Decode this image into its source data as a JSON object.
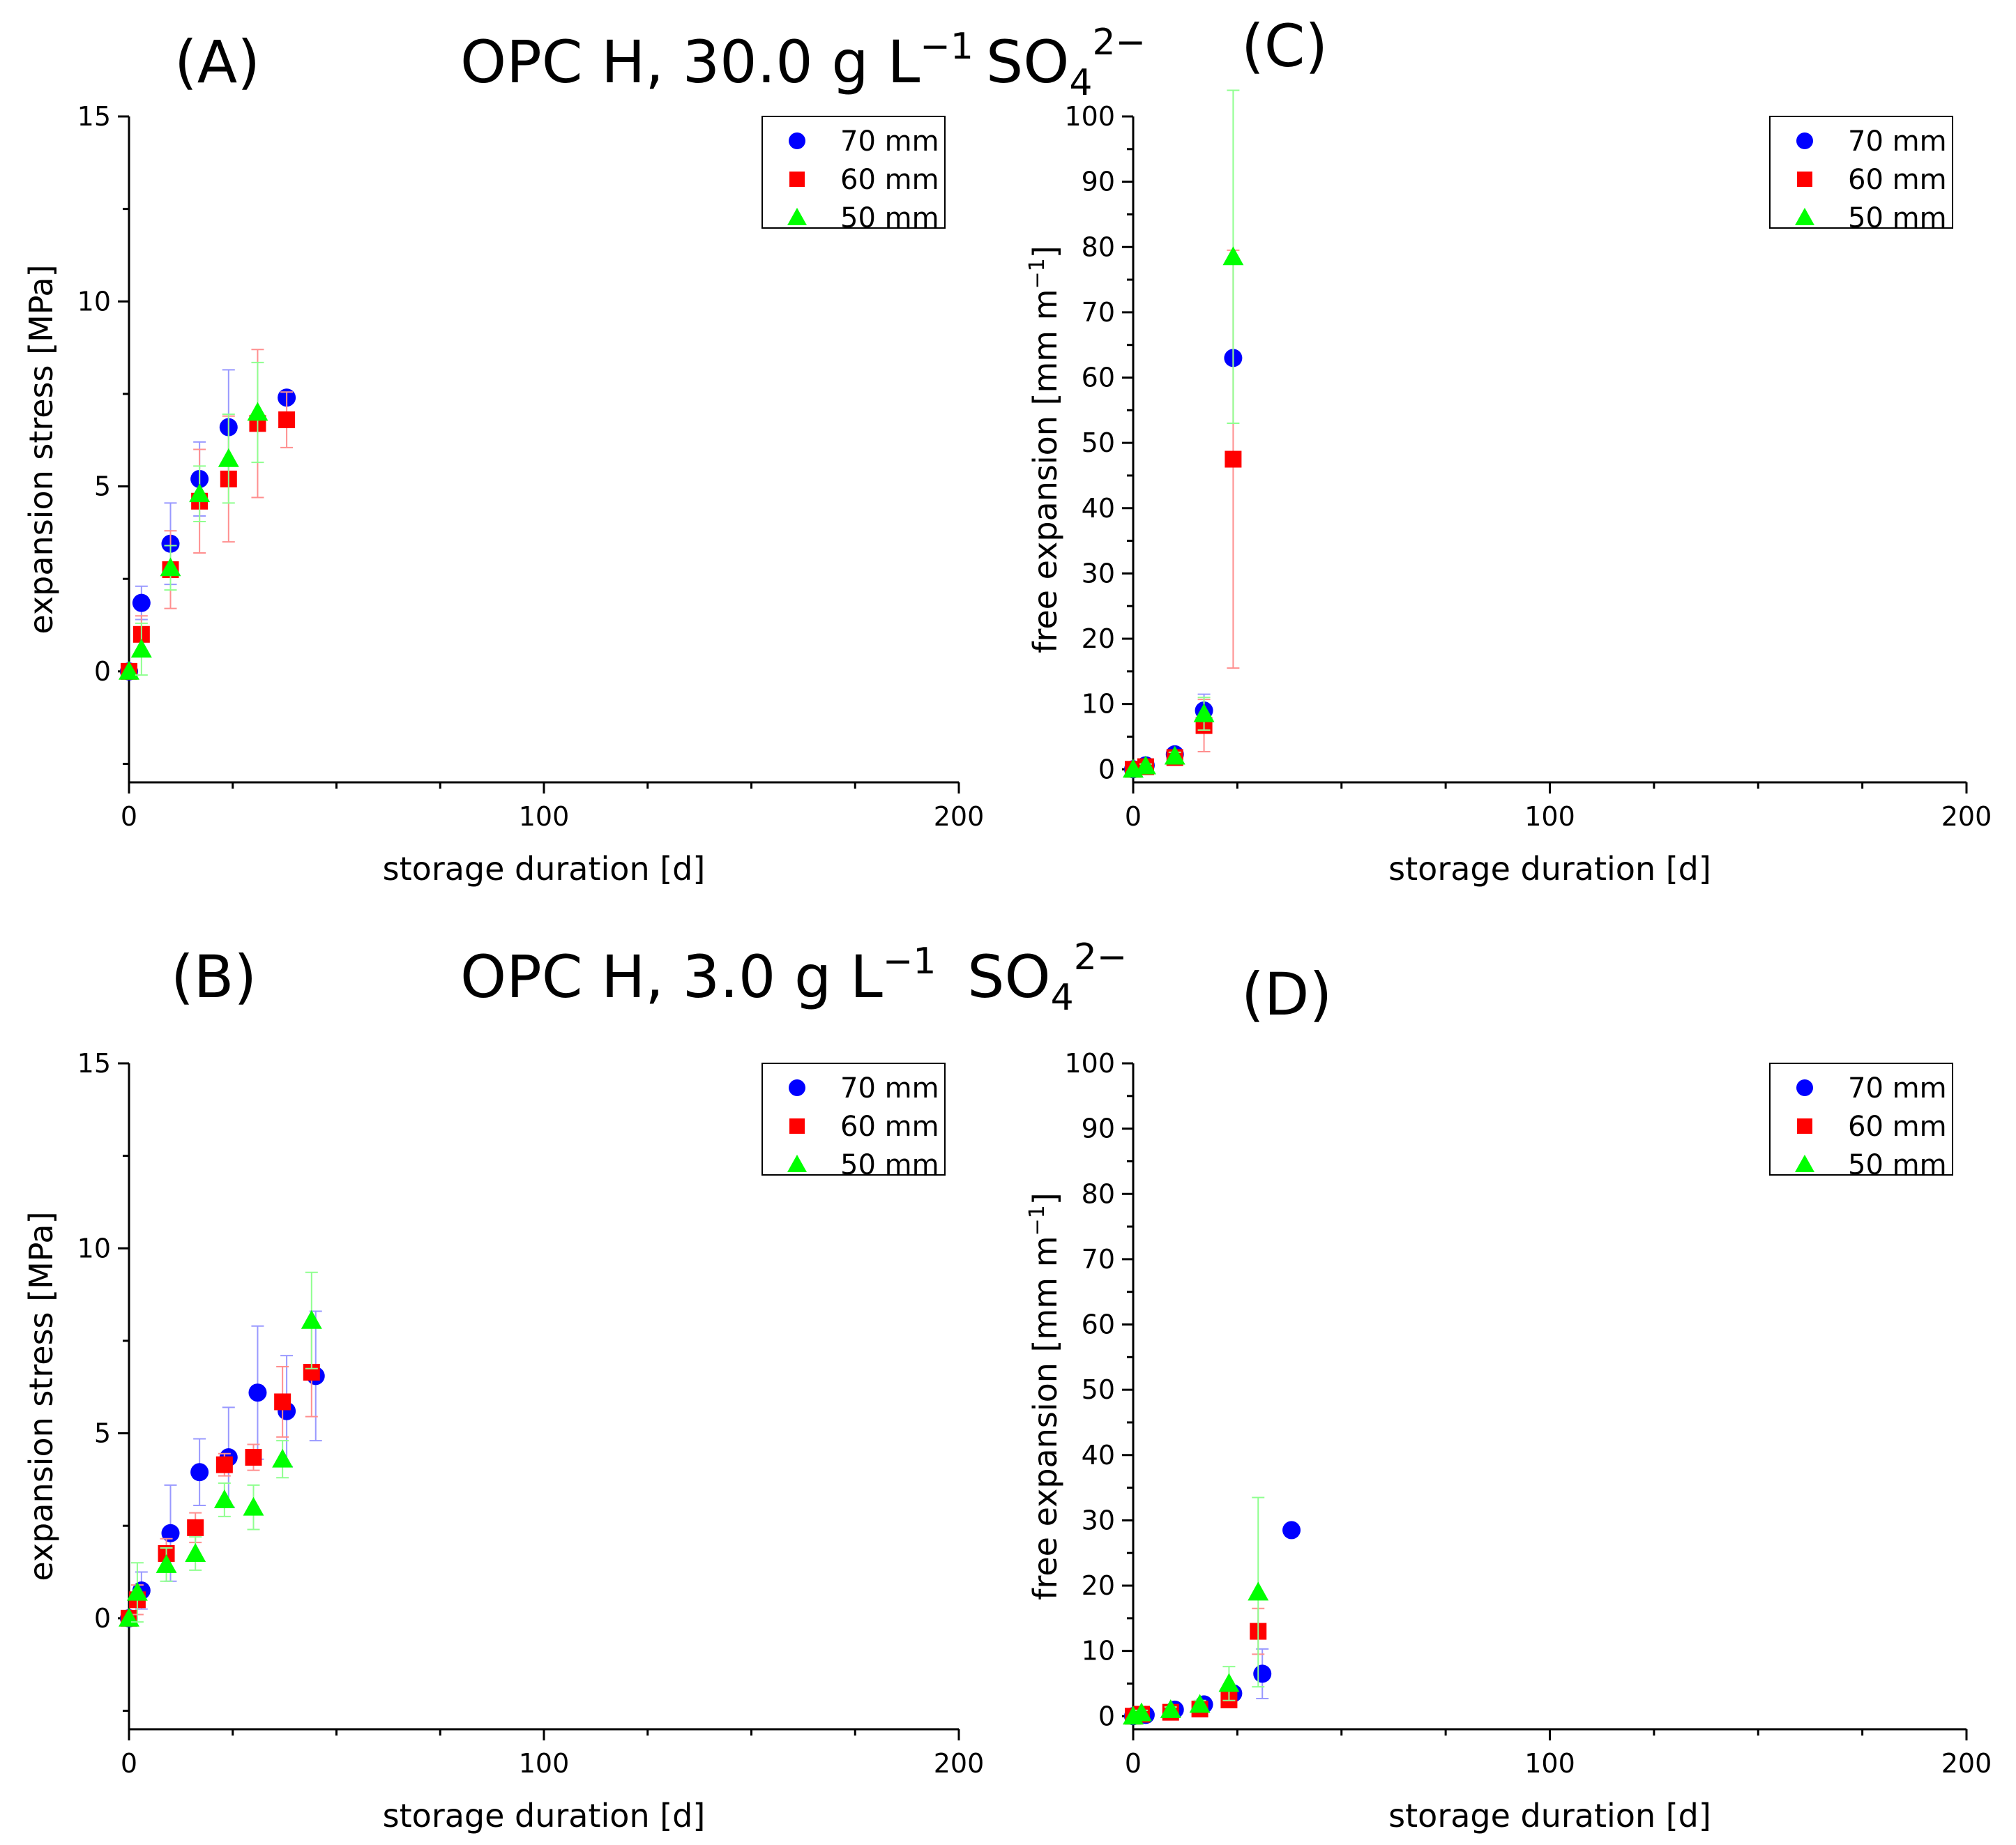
{
  "figure": {
    "colors": {
      "70 mm": "#0000ff",
      "60 mm": "#ff0000",
      "50 mm": "#00ff00",
      "errbar70": "#9999ff",
      "errbar60": "#ff8f8f",
      "errbar50": "#8fff8f"
    }
  },
  "chart_data": [
    {
      "id": "A",
      "type": "scatter",
      "panel_label": "(A)",
      "title": "OPC H, 30.0 g L",
      "title_sup": "−1",
      "title_ion": "SO",
      "title_ion_sub": "4",
      "title_ion_sup": "2−",
      "xlabel": "storage duration [d]",
      "ylabel": "expansion stress [MPa]",
      "xlim": [
        0,
        200
      ],
      "ylim": [
        -3,
        15
      ],
      "xticks": [
        0,
        100,
        200
      ],
      "yticks": [
        0,
        5,
        10,
        15
      ],
      "legend": {
        "position": "top-right",
        "entries": [
          "70 mm",
          "60 mm",
          "50 mm"
        ]
      },
      "series": [
        {
          "name": "70 mm",
          "marker": "circle",
          "points": [
            [
              0,
              0,
              0
            ],
            [
              3,
              1.85,
              0.45
            ],
            [
              10,
              3.45,
              1.1
            ],
            [
              17,
              5.2,
              1.0
            ],
            [
              24,
              6.6,
              1.55
            ],
            [
              38,
              7.4,
              0
            ]
          ]
        },
        {
          "name": "60 mm",
          "marker": "square",
          "points": [
            [
              0,
              0,
              0
            ],
            [
              3,
              1.0,
              0.5
            ],
            [
              10,
              2.75,
              1.05
            ],
            [
              17,
              4.6,
              1.4
            ],
            [
              24,
              5.2,
              1.7
            ],
            [
              31,
              6.7,
              2.0
            ],
            [
              38,
              6.8,
              0.75
            ]
          ]
        },
        {
          "name": "50 mm",
          "marker": "triangle",
          "points": [
            [
              0,
              0,
              0
            ],
            [
              3,
              0.6,
              0.7
            ],
            [
              10,
              2.8,
              0.6
            ],
            [
              17,
              4.8,
              0.75
            ],
            [
              24,
              5.75,
              1.2
            ],
            [
              31,
              7.0,
              1.35
            ]
          ]
        }
      ]
    },
    {
      "id": "C",
      "type": "scatter",
      "panel_label": "(C)",
      "xlabel": "storage duration [d]",
      "ylabel": "free expansion [mm m",
      "ylabel_sup": "−1",
      "ylabel_end": "]",
      "xlim": [
        0,
        200
      ],
      "ylim": [
        -2,
        100
      ],
      "xticks": [
        0,
        100,
        200
      ],
      "yticks": [
        0,
        10,
        20,
        30,
        40,
        50,
        60,
        70,
        80,
        90,
        100
      ],
      "legend": {
        "position": "top-right",
        "entries": [
          "70 mm",
          "60 mm",
          "50 mm"
        ]
      },
      "series": [
        {
          "name": "70 mm",
          "marker": "circle",
          "points": [
            [
              0,
              0,
              0
            ],
            [
              3,
              0.6,
              0.3
            ],
            [
              10,
              2.3,
              0.6
            ],
            [
              17,
              9.0,
              2.5
            ],
            [
              24,
              63,
              0
            ]
          ]
        },
        {
          "name": "60 mm",
          "marker": "square",
          "points": [
            [
              0,
              0,
              0
            ],
            [
              3,
              0.4,
              0.3
            ],
            [
              10,
              1.8,
              0.6
            ],
            [
              17,
              6.7,
              4.0
            ],
            [
              24,
              47.5,
              32
            ]
          ]
        },
        {
          "name": "50 mm",
          "marker": "triangle",
          "points": [
            [
              0,
              0,
              0
            ],
            [
              3,
              0.5,
              0.3
            ],
            [
              10,
              2.0,
              0.6
            ],
            [
              17,
              8.5,
              2.5
            ],
            [
              24,
              78.5,
              25.5
            ]
          ]
        }
      ]
    },
    {
      "id": "B",
      "type": "scatter",
      "panel_label": "(B)",
      "title": "OPC H, 3.0 g L",
      "title_sup": "−1",
      "title_ion": " SO",
      "title_ion_sub": "4",
      "title_ion_sup": "2−",
      "xlabel": "storage duration [d]",
      "ylabel": "expansion stress [MPa]",
      "xlim": [
        0,
        200
      ],
      "ylim": [
        -3,
        15
      ],
      "xticks": [
        0,
        100,
        200
      ],
      "yticks": [
        0,
        5,
        10,
        15
      ],
      "legend": {
        "position": "top-right",
        "entries": [
          "70 mm",
          "60 mm",
          "50 mm"
        ]
      },
      "series": [
        {
          "name": "70 mm",
          "marker": "circle",
          "points": [
            [
              0,
              0,
              0
            ],
            [
              3,
              0.75,
              0.5
            ],
            [
              10,
              2.3,
              1.3
            ],
            [
              17,
              3.95,
              0.9
            ],
            [
              24,
              4.35,
              1.35
            ],
            [
              31,
              6.1,
              1.8
            ],
            [
              38,
              5.6,
              1.5
            ],
            [
              45,
              6.55,
              1.75
            ]
          ]
        },
        {
          "name": "60 mm",
          "marker": "square",
          "points": [
            [
              0,
              0,
              0
            ],
            [
              2,
              0.5,
              0.4
            ],
            [
              9,
              1.75,
              0.4
            ],
            [
              16,
              2.45,
              0.4
            ],
            [
              23,
              4.15,
              0.3
            ],
            [
              30,
              4.35,
              0.35
            ],
            [
              37,
              5.85,
              0.95
            ],
            [
              44,
              6.65,
              1.2
            ]
          ]
        },
        {
          "name": "50 mm",
          "marker": "triangle",
          "points": [
            [
              0,
              0,
              0
            ],
            [
              2,
              0.7,
              0.8
            ],
            [
              9,
              1.45,
              0.45
            ],
            [
              16,
              1.75,
              0.45
            ],
            [
              23,
              3.2,
              0.45
            ],
            [
              30,
              3.0,
              0.6
            ],
            [
              37,
              4.3,
              0.5
            ],
            [
              44,
              8.05,
              1.3
            ]
          ]
        }
      ]
    },
    {
      "id": "D",
      "type": "scatter",
      "panel_label": "(D)",
      "xlabel": "storage duration [d]",
      "ylabel": "free expansion [mm m",
      "ylabel_sup": "−1",
      "ylabel_end": "]",
      "xlim": [
        0,
        200
      ],
      "ylim": [
        -2,
        100
      ],
      "xticks": [
        0,
        100,
        200
      ],
      "yticks": [
        0,
        10,
        20,
        30,
        40,
        50,
        60,
        70,
        80,
        90,
        100
      ],
      "legend": {
        "position": "top-right",
        "entries": [
          "70 mm",
          "60 mm",
          "50 mm"
        ]
      },
      "series": [
        {
          "name": "70 mm",
          "marker": "circle",
          "points": [
            [
              0,
              0,
              0
            ],
            [
              3,
              0.2,
              0.3
            ],
            [
              10,
              1.0,
              0.5
            ],
            [
              17,
              1.8,
              0.6
            ],
            [
              24,
              3.5,
              0.9
            ],
            [
              31,
              6.5,
              3.8
            ],
            [
              38,
              28.5,
              0
            ]
          ]
        },
        {
          "name": "60 mm",
          "marker": "square",
          "points": [
            [
              0,
              0,
              0
            ],
            [
              2,
              0.3,
              0.3
            ],
            [
              9,
              0.6,
              0.4
            ],
            [
              16,
              1.1,
              0.4
            ],
            [
              23,
              2.5,
              0.6
            ],
            [
              30,
              13.0,
              3.5
            ]
          ]
        },
        {
          "name": "50 mm",
          "marker": "triangle",
          "points": [
            [
              0,
              0,
              0
            ],
            [
              2,
              0.5,
              0.4
            ],
            [
              9,
              1.0,
              0.4
            ],
            [
              16,
              1.8,
              0.6
            ],
            [
              23,
              5.0,
              2.6
            ],
            [
              30,
              19.0,
              14.5
            ]
          ]
        }
      ]
    }
  ]
}
